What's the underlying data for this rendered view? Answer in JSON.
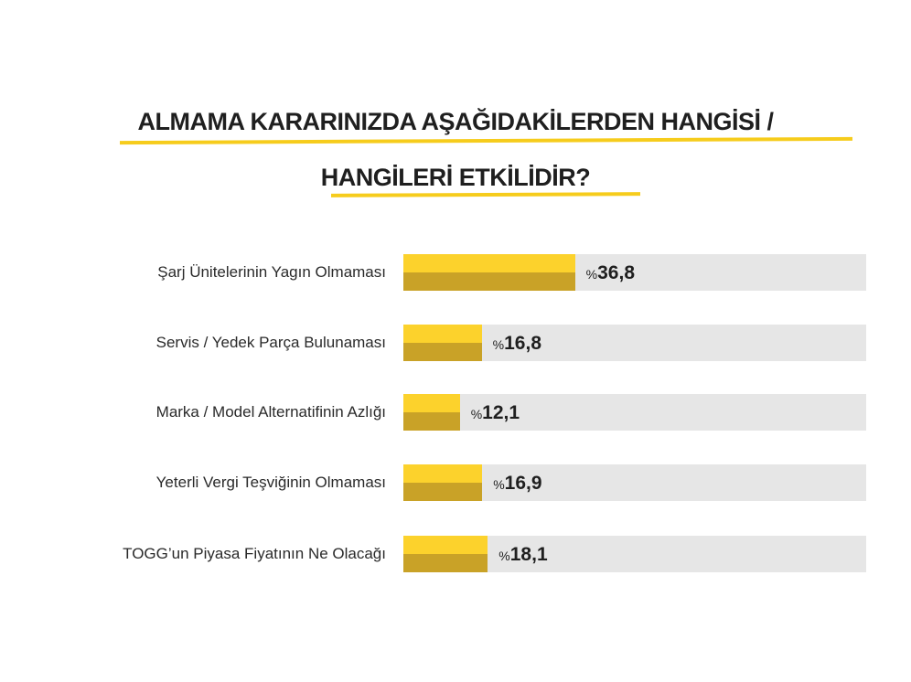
{
  "chart_data": {
    "type": "bar",
    "orientation": "horizontal",
    "title": [
      "ALMAMA KARARINIZDA AŞAĞIDAKİLERDEN HANGİSİ /",
      "HANGİLERİ ETKİLİDİR?"
    ],
    "categories": [
      "Şarj Ünitelerinin Yagın Olmaması",
      "Servis / Yedek Parça Bulunaması",
      "Marka / Model Alternatifinin Azlığı",
      "Yeterli Vergi Teşviğinin Olmaması",
      "TOGG’un Piyasa Fiyatının Ne Olacağı"
    ],
    "values": [
      36.8,
      16.8,
      12.1,
      16.9,
      18.1
    ],
    "value_labels": [
      "36,8",
      "16,8",
      "12,1",
      "16,9",
      "18,1"
    ],
    "value_prefix": "%",
    "xlim": [
      0,
      100
    ],
    "grid": false,
    "colors": {
      "bar_top": "#fcd22c",
      "bar_bottom": "#c9a227",
      "track": "#e6e6e6",
      "underline": "#f6cc1c"
    }
  }
}
